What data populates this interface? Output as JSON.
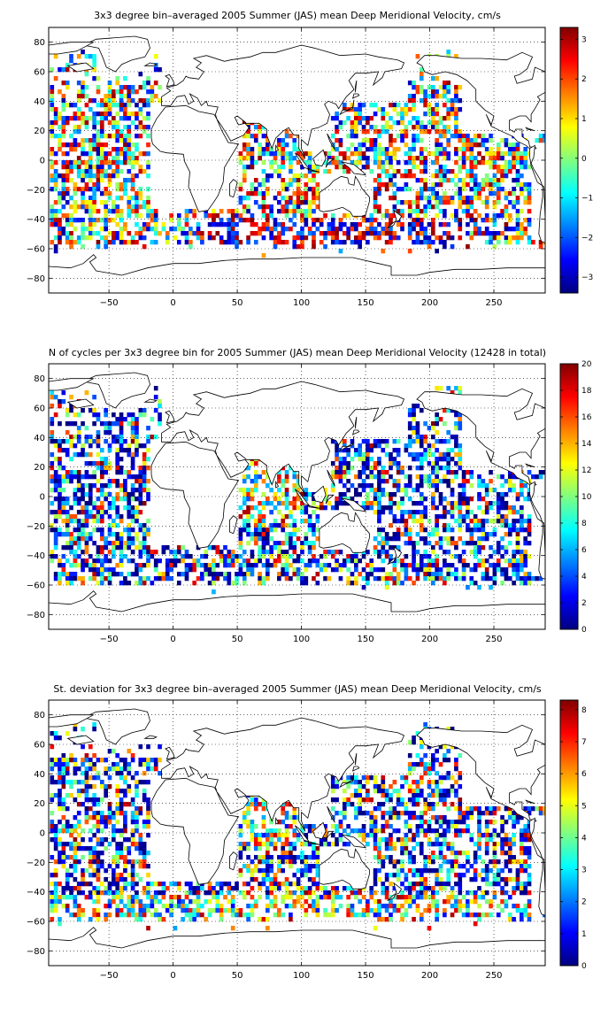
{
  "panels": [
    {
      "title": "3x3 degree bin–averaged 2005 Summer (JAS) mean Deep Meridional Velocity, cm/s",
      "variable": "velocity",
      "colorbar": {
        "min": -3.4,
        "max": 3.3,
        "ticks": [
          "3",
          "2",
          "1",
          "0",
          "−1",
          "−2",
          "−3"
        ],
        "tick_values": [
          3,
          2,
          1,
          0,
          -1,
          -2,
          -3
        ]
      }
    },
    {
      "title": "N of cycles per 3x3 degree bin for 2005 Summer (JAS) mean Deep Meridional Velocity (12428 in total)",
      "variable": "count",
      "colorbar": {
        "min": 0,
        "max": 20,
        "ticks": [
          "20",
          "18",
          "16",
          "14",
          "12",
          "10",
          "8",
          "6",
          "4",
          "2",
          "0"
        ],
        "tick_values": [
          20,
          18,
          16,
          14,
          12,
          10,
          8,
          6,
          4,
          2,
          0
        ]
      }
    },
    {
      "title": "St. deviation for 3x3 degree bin–averaged 2005 Summer (JAS) mean Deep Meridional Velocity, cm/s",
      "variable": "stdev",
      "colorbar": {
        "min": 0,
        "max": 8.3,
        "ticks": [
          "8",
          "7",
          "6",
          "5",
          "4",
          "3",
          "2",
          "1",
          "0"
        ],
        "tick_values": [
          8,
          7,
          6,
          5,
          4,
          3,
          2,
          1,
          0
        ]
      }
    }
  ],
  "axes": {
    "x_ticks": [
      "−50",
      "0",
      "50",
      "100",
      "150",
      "200",
      "250"
    ],
    "x_tick_values": [
      -50,
      0,
      50,
      100,
      150,
      200,
      250
    ],
    "y_ticks": [
      "80",
      "60",
      "40",
      "20",
      "0",
      "−20",
      "−40",
      "−60",
      "−80"
    ],
    "y_tick_values": [
      80,
      60,
      40,
      20,
      0,
      -20,
      -40,
      -60,
      -80
    ],
    "xlim": [
      -97,
      290
    ],
    "ylim": [
      -90,
      90
    ],
    "grid": "dotted"
  },
  "colormap": "jet",
  "land_color": "#ffffff",
  "coast_color": "#000000"
}
